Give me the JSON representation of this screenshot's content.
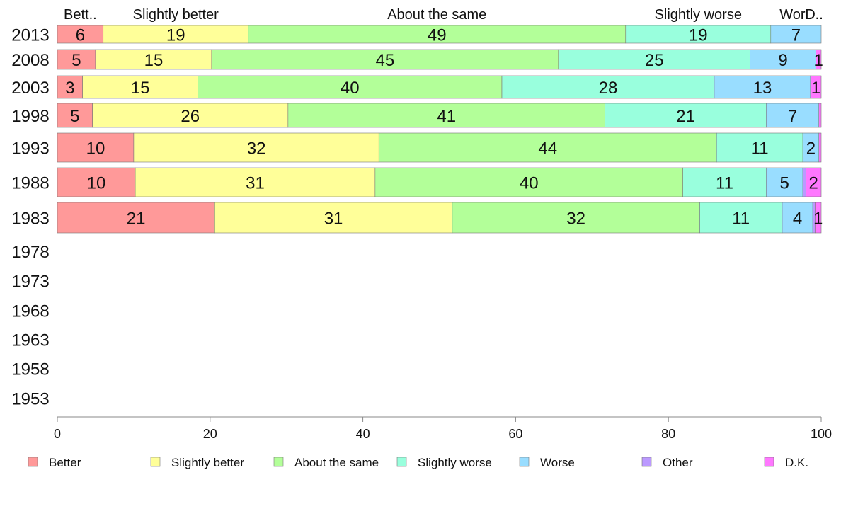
{
  "chart_data": {
    "type": "bar",
    "orientation": "horizontal",
    "stacked": true,
    "categories": [
      "2013",
      "2008",
      "2003",
      "1998",
      "1993",
      "1988",
      "1983",
      "1978",
      "1973",
      "1968",
      "1963",
      "1958",
      "1953"
    ],
    "series": [
      {
        "name": "Better",
        "color": "#ff9999",
        "values": [
          6,
          5,
          3.3,
          4.6,
          10,
          10.2,
          20.6,
          null,
          null,
          null,
          null,
          null,
          null
        ],
        "labels": [
          "6",
          "5",
          "3",
          "5",
          "10",
          "10",
          "21",
          "",
          "",
          "",
          "",
          "",
          ""
        ]
      },
      {
        "name": "Slightly better",
        "color": "#ffff99",
        "values": [
          19,
          15.2,
          15.1,
          25.6,
          32.1,
          31.4,
          31.1,
          null,
          null,
          null,
          null,
          null,
          null
        ],
        "labels": [
          "19",
          "15",
          "15",
          "26",
          "32",
          "31",
          "31",
          "",
          "",
          "",
          "",
          "",
          ""
        ]
      },
      {
        "name": "About the same",
        "color": "#b3ff99",
        "values": [
          49.4,
          45.4,
          39.8,
          41.5,
          44.2,
          40.3,
          32.4,
          null,
          null,
          null,
          null,
          null,
          null
        ],
        "labels": [
          "49",
          "45",
          "40",
          "41",
          "44",
          "40",
          "32",
          "",
          "",
          "",
          "",
          "",
          ""
        ]
      },
      {
        "name": "Slightly worse",
        "color": "#99ffdd",
        "values": [
          19,
          25.1,
          27.8,
          21.1,
          11.3,
          10.9,
          10.8,
          null,
          null,
          null,
          null,
          null,
          null
        ],
        "labels": [
          "19",
          "25",
          "28",
          "21",
          "11",
          "11",
          "11",
          "",
          "",
          "",
          "",
          "",
          ""
        ]
      },
      {
        "name": "Worse",
        "color": "#99ddff",
        "values": [
          6.6,
          8.6,
          12.6,
          6.9,
          2.1,
          4.8,
          4,
          null,
          null,
          null,
          null,
          null,
          null
        ],
        "labels": [
          "7",
          "9",
          "13",
          "7",
          "2",
          "5",
          "4",
          "",
          "",
          "",
          "",
          "",
          ""
        ]
      },
      {
        "name": "Other",
        "color": "#bb99ff",
        "values": [
          0,
          0,
          0,
          0,
          0,
          0.4,
          0.3,
          null,
          null,
          null,
          null,
          null,
          null
        ],
        "labels": [
          "",
          "",
          "",
          "",
          "",
          "",
          "",
          "",
          "",
          "",
          "",
          "",
          ""
        ]
      },
      {
        "name": "D.K.",
        "color": "#ff77ff",
        "values": [
          0,
          0.7,
          1.4,
          0.3,
          0.3,
          2,
          0.8,
          null,
          null,
          null,
          null,
          null,
          null
        ],
        "labels": [
          "",
          "1",
          "1",
          "",
          "",
          "2",
          "1",
          "",
          "",
          "",
          "",
          "",
          ""
        ]
      }
    ],
    "top_labels": [
      "Bett..",
      "Slightly better",
      "About the same",
      "Slightly worse",
      "Wor..",
      "D..",
      "D.."
    ],
    "xlim": [
      0,
      100
    ],
    "xticks": [
      "0",
      "20",
      "40",
      "60",
      "80",
      "100"
    ],
    "grid": false,
    "legend_position": "bottom"
  }
}
